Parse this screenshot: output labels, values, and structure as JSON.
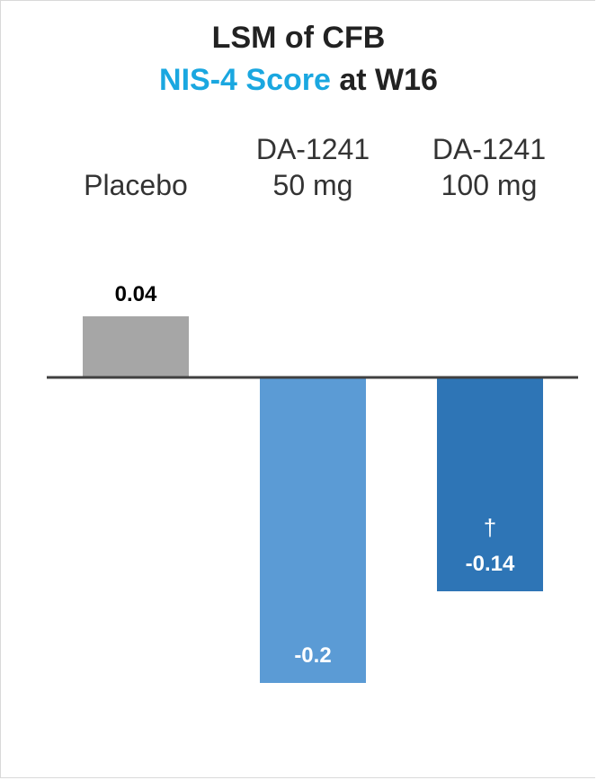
{
  "title_line1": "LSM of CFB",
  "title_line2_highlight": "NIS-4 Score",
  "title_line2_rest": " at W16",
  "colors": {
    "highlight": "#1aa7e0",
    "placebo": "#a6a6a6",
    "dose50": "#5b9bd5",
    "dose100": "#2e75b6"
  },
  "categories": [
    {
      "line1": "",
      "line2": "Placebo"
    },
    {
      "line1": "DA-1241",
      "line2": "50 mg"
    },
    {
      "line1": "DA-1241",
      "line2": "100 mg"
    }
  ],
  "chart_data": {
    "type": "bar",
    "title": "LSM of CFB NIS-4 Score at W16",
    "categories": [
      "Placebo",
      "DA-1241 50 mg",
      "DA-1241 100 mg"
    ],
    "values": [
      0.04,
      -0.2,
      -0.14
    ],
    "data_labels": [
      "0.04",
      "-0.2",
      "-0.14"
    ],
    "annotations": [
      "",
      "",
      "†"
    ],
    "xlabel": "",
    "ylabel": "",
    "grid": false
  }
}
